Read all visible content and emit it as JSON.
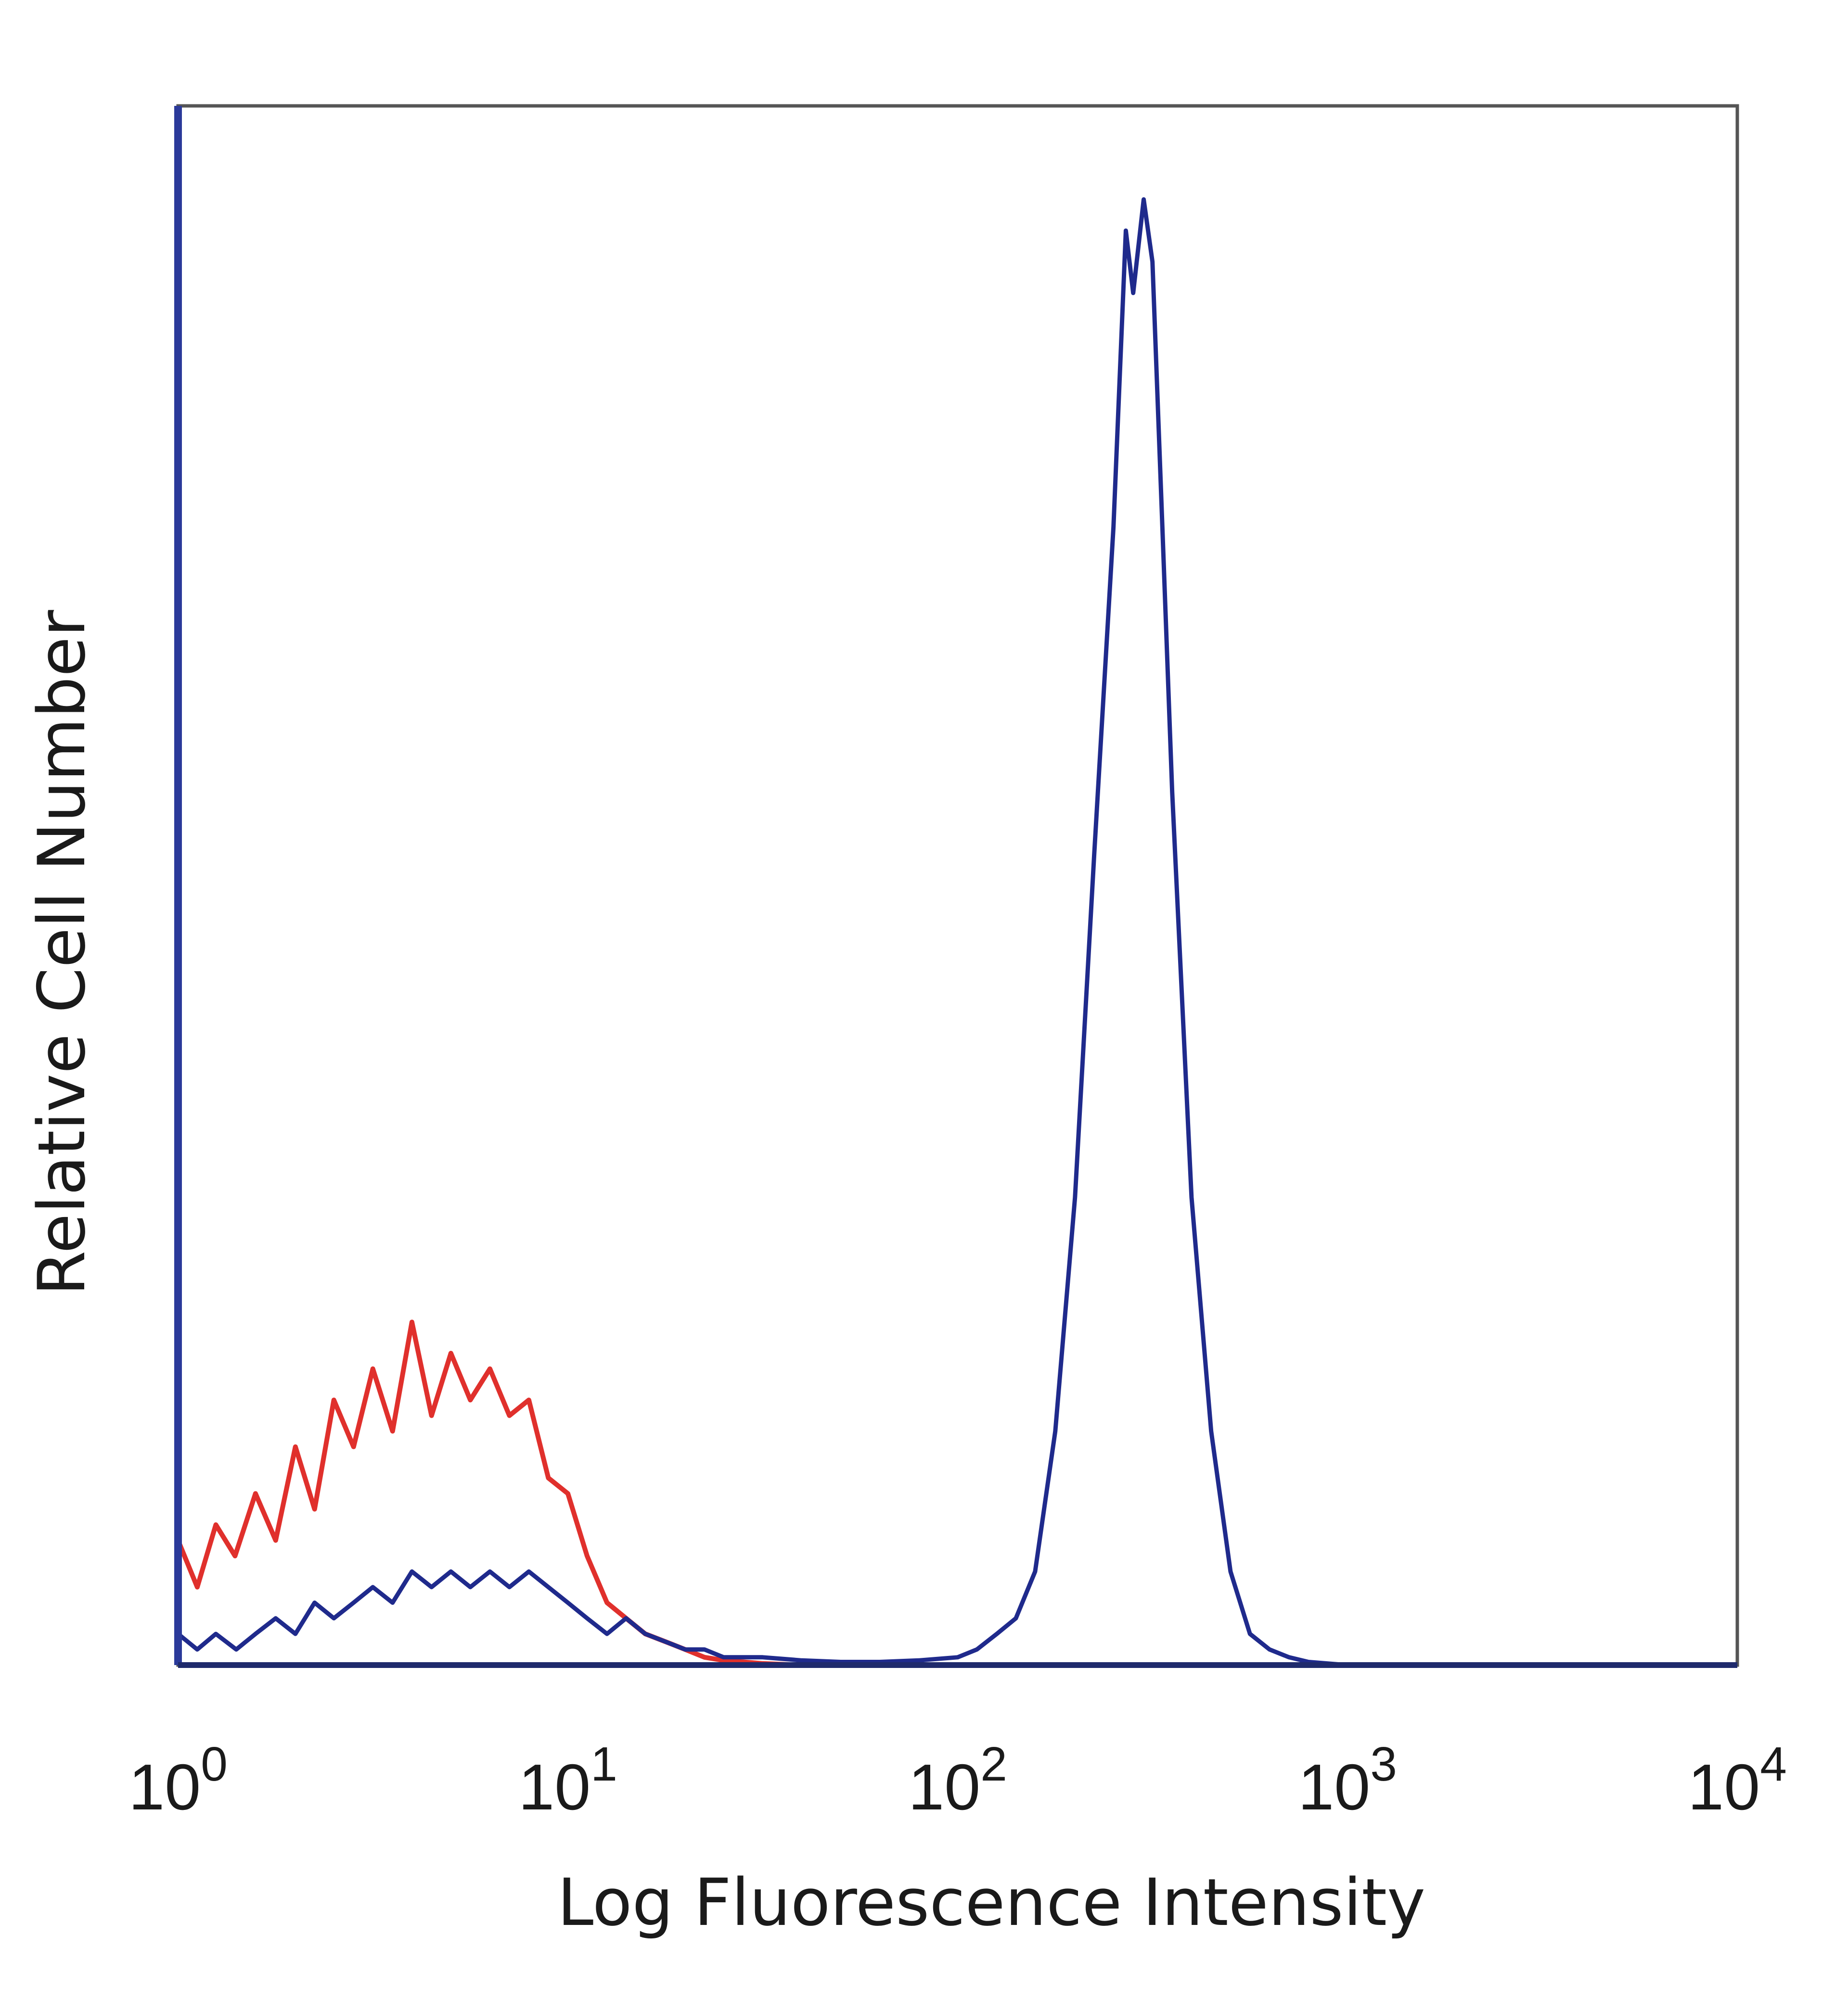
{
  "chart_data": {
    "type": "line",
    "xlabel": "Log Fluorescence Intensity",
    "ylabel": "Relative Cell Number",
    "x_scale": "log",
    "xlim": [
      1,
      10000
    ],
    "ylim": [
      0,
      100
    ],
    "grid": false,
    "x_ticks": [
      {
        "value": 1,
        "base": "10",
        "exp": "0"
      },
      {
        "value": 10,
        "base": "10",
        "exp": "1"
      },
      {
        "value": 100,
        "base": "10",
        "exp": "2"
      },
      {
        "value": 1000,
        "base": "10",
        "exp": "3"
      },
      {
        "value": 10000,
        "base": "10",
        "exp": "4"
      }
    ],
    "series": [
      {
        "color": "#e0302c",
        "x": [
          1.0,
          1.12,
          1.25,
          1.4,
          1.58,
          1.78,
          2.0,
          2.24,
          2.51,
          2.82,
          3.16,
          3.55,
          3.98,
          4.47,
          5.01,
          5.62,
          6.31,
          7.08,
          7.94,
          8.91,
          10.0,
          11.2,
          12.6,
          14.1,
          15.8,
          17.8,
          20.0,
          22.4,
          25.1,
          28.2,
          31.6,
          39.8,
          50.1,
          63.1,
          100,
          200,
          500,
          1000,
          10000
        ],
        "y": [
          8,
          5,
          9,
          7,
          11,
          8,
          14,
          10,
          17,
          14,
          19,
          15,
          22,
          16,
          20,
          17,
          19,
          16,
          17,
          12,
          11,
          7,
          4,
          3,
          2,
          1.5,
          1,
          0.5,
          0.3,
          0.2,
          0.1,
          0,
          0,
          0,
          0,
          0,
          0,
          0,
          0
        ],
        "stroke_width": 10
      },
      {
        "color": "#1f2a8c",
        "x": [
          1.0,
          1.12,
          1.25,
          1.41,
          1.58,
          1.78,
          2.0,
          2.24,
          2.51,
          2.82,
          3.16,
          3.55,
          3.98,
          4.47,
          5.01,
          5.62,
          6.31,
          7.08,
          7.94,
          8.91,
          10.0,
          11.2,
          12.6,
          14.1,
          15.8,
          17.8,
          20.0,
          22.4,
          25.1,
          28.2,
          31.6,
          39.8,
          50.1,
          63.1,
          79.4,
          100,
          112,
          126,
          141,
          158,
          178,
          200,
          224,
          251,
          270,
          282,
          300,
          316,
          335,
          355,
          398,
          447,
          501,
          562,
          631,
          708,
          794,
          1000,
          10000
        ],
        "y": [
          2,
          1,
          2,
          1,
          2,
          3,
          2,
          4,
          3,
          4,
          5,
          4,
          6,
          5,
          6,
          5,
          6,
          5,
          6,
          5,
          4,
          3,
          2,
          3,
          2,
          1.5,
          1,
          1,
          0.5,
          0.5,
          0.5,
          0.3,
          0.2,
          0.2,
          0.3,
          0.5,
          1,
          2,
          3,
          6,
          15,
          30,
          52,
          73,
          92,
          88,
          94,
          90,
          73,
          56,
          30,
          15,
          6,
          2,
          1,
          0.5,
          0.2,
          0,
          0
        ],
        "stroke_width": 9
      }
    ]
  }
}
